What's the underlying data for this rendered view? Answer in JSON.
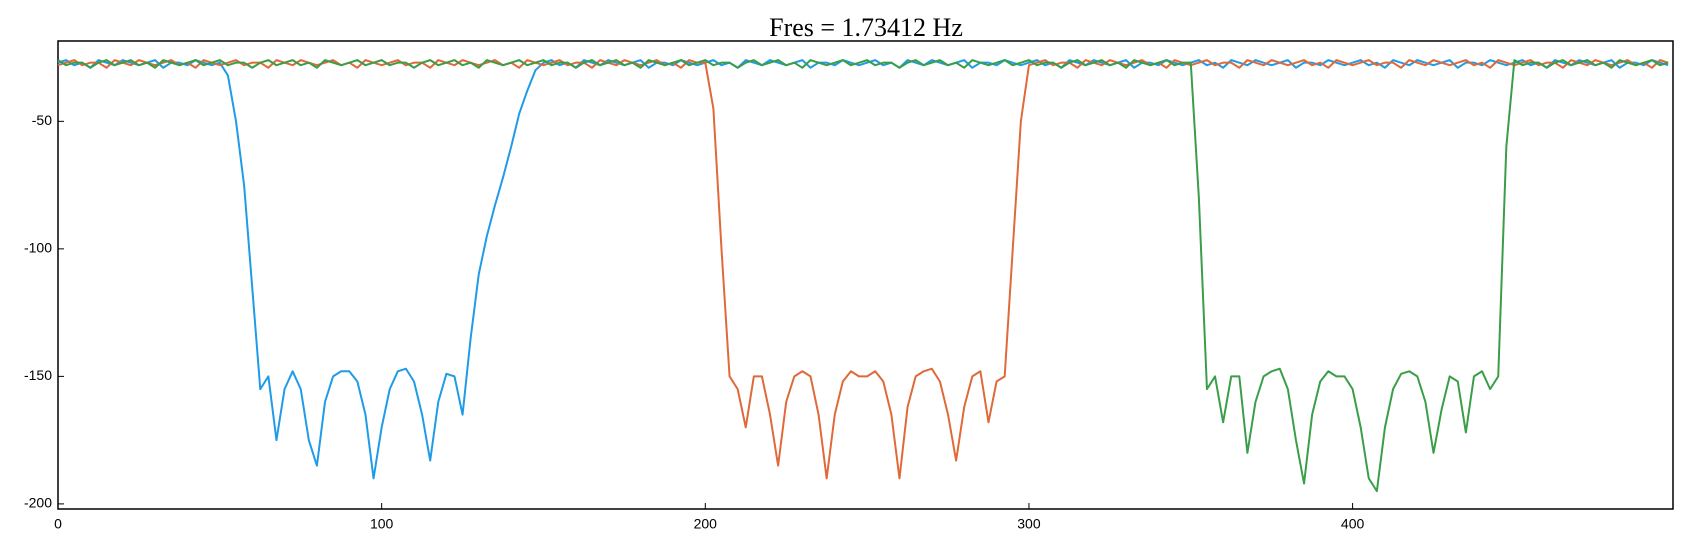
{
  "chart_data": {
    "type": "line",
    "title": "Fres = 1.73412 Hz",
    "x": [
      0,
      2.5,
      5,
      7.5,
      10,
      12.5,
      15,
      17.5,
      20,
      22.5,
      25,
      27.5,
      30,
      32.5,
      35,
      37.5,
      40,
      42.5,
      45,
      47.5,
      50,
      52.5,
      55,
      57.5,
      60,
      62.5,
      65,
      67.5,
      70,
      72.5,
      75,
      77.5,
      80,
      82.5,
      85,
      87.5,
      90,
      92.5,
      95,
      97.5,
      100,
      102.5,
      105,
      107.5,
      110,
      112.5,
      115,
      117.5,
      120,
      122.5,
      125,
      127.5,
      130,
      132.5,
      135,
      137.5,
      140,
      142.5,
      145,
      147.5,
      150,
      152.5,
      155,
      157.5,
      160,
      162.5,
      165,
      167.5,
      170,
      172.5,
      175,
      177.5,
      180,
      182.5,
      185,
      187.5,
      190,
      192.5,
      195,
      197.5,
      200,
      202.5,
      205,
      207.5,
      210,
      212.5,
      215,
      217.5,
      220,
      222.5,
      225,
      227.5,
      230,
      232.5,
      235,
      237.5,
      240,
      242.5,
      245,
      247.5,
      250,
      252.5,
      255,
      257.5,
      260,
      262.5,
      265,
      267.5,
      270,
      272.5,
      275,
      277.5,
      280,
      282.5,
      285,
      287.5,
      290,
      292.5,
      295,
      297.5,
      300,
      302.5,
      305,
      307.5,
      310,
      312.5,
      315,
      317.5,
      320,
      322.5,
      325,
      327.5,
      330,
      332.5,
      335,
      337.5,
      340,
      342.5,
      345,
      347.5,
      350,
      352.5,
      355,
      357.5,
      360,
      362.5,
      365,
      367.5,
      370,
      372.5,
      375,
      377.5,
      380,
      382.5,
      385,
      387.5,
      390,
      392.5,
      395,
      397.5,
      400,
      402.5,
      405,
      407.5,
      410,
      412.5,
      415,
      417.5,
      420,
      422.5,
      425,
      427.5,
      430,
      432.5,
      435,
      437.5,
      440,
      442.5,
      445,
      447.5,
      450,
      452.5,
      455,
      457.5,
      460,
      462.5,
      465,
      467.5,
      470,
      472.5,
      475,
      477.5,
      480,
      482.5,
      485,
      487.5,
      490,
      492.5,
      495,
      497.5
    ],
    "series": [
      {
        "color": "#1f9be8",
        "values": [
          -27,
          -26,
          -28,
          -27,
          -29,
          -26,
          -27,
          -28,
          -26,
          -27,
          -28,
          -27,
          -26,
          -29,
          -27,
          -27,
          -28,
          -26,
          -27,
          -28,
          -27,
          -32,
          -50,
          -75,
          -115,
          -155,
          -150,
          -175,
          -155,
          -148,
          -155,
          -175,
          -185,
          -160,
          -150,
          -148,
          -148,
          -152,
          -165,
          -190,
          -170,
          -155,
          -148,
          -147,
          -152,
          -165,
          -183,
          -160,
          -149,
          -150,
          -165,
          -135,
          -110,
          -95,
          -83,
          -72,
          -60,
          -47,
          -38,
          -30,
          -27,
          -26,
          -28,
          -27,
          -29,
          -26,
          -27,
          -28,
          -26,
          -27,
          -28,
          -27,
          -26,
          -29,
          -27,
          -27,
          -28,
          -26,
          -27,
          -28,
          -27,
          -26,
          -28,
          -27,
          -29,
          -26,
          -27,
          -28,
          -26,
          -27,
          -28,
          -27,
          -26,
          -29,
          -27,
          -27,
          -28,
          -26,
          -27,
          -28,
          -27,
          -26,
          -28,
          -27,
          -29,
          -26,
          -27,
          -28,
          -26,
          -27,
          -28,
          -27,
          -26,
          -29,
          -27,
          -27,
          -28,
          -26,
          -27,
          -28,
          -27,
          -26,
          -28,
          -27,
          -29,
          -26,
          -27,
          -28,
          -26,
          -27,
          -28,
          -27,
          -26,
          -29,
          -27,
          -27,
          -28,
          -26,
          -27,
          -28,
          -27,
          -26,
          -28,
          -27,
          -29,
          -26,
          -27,
          -28,
          -26,
          -27,
          -28,
          -27,
          -26,
          -29,
          -27,
          -27,
          -28,
          -26,
          -27,
          -28,
          -27,
          -26,
          -28,
          -27,
          -29,
          -26,
          -27,
          -28,
          -26,
          -27,
          -28,
          -27,
          -26,
          -29,
          -27,
          -27,
          -28,
          -26,
          -27,
          -28,
          -27,
          -26,
          -28,
          -27,
          -29,
          -26,
          -27,
          -28,
          -26,
          -27,
          -28,
          -27,
          -26,
          -29,
          -27,
          -27,
          -28,
          -26,
          -27,
          -28
        ]
      },
      {
        "color": "#e0693a",
        "values": [
          -28,
          -27,
          -26,
          -28,
          -27,
          -27,
          -29,
          -26,
          -27,
          -28,
          -26,
          -27,
          -28,
          -27,
          -26,
          -28,
          -27,
          -29,
          -26,
          -27,
          -28,
          -27,
          -26,
          -28,
          -27,
          -27,
          -29,
          -26,
          -27,
          -28,
          -26,
          -27,
          -28,
          -27,
          -26,
          -28,
          -27,
          -29,
          -26,
          -27,
          -28,
          -27,
          -26,
          -28,
          -27,
          -27,
          -29,
          -26,
          -27,
          -28,
          -26,
          -27,
          -28,
          -27,
          -26,
          -28,
          -27,
          -29,
          -26,
          -27,
          -28,
          -27,
          -26,
          -28,
          -27,
          -27,
          -29,
          -26,
          -27,
          -28,
          -26,
          -27,
          -28,
          -27,
          -26,
          -28,
          -27,
          -29,
          -26,
          -27,
          -27,
          -45,
          -100,
          -150,
          -155,
          -170,
          -150,
          -150,
          -165,
          -185,
          -160,
          -150,
          -148,
          -150,
          -165,
          -190,
          -165,
          -152,
          -148,
          -150,
          -150,
          -148,
          -152,
          -165,
          -190,
          -162,
          -150,
          -148,
          -147,
          -152,
          -165,
          -183,
          -162,
          -150,
          -148,
          -168,
          -152,
          -150,
          -100,
          -50,
          -28,
          -27,
          -26,
          -28,
          -27,
          -27,
          -29,
          -26,
          -27,
          -28,
          -26,
          -27,
          -28,
          -27,
          -26,
          -28,
          -27,
          -29,
          -26,
          -27,
          -28,
          -27,
          -26,
          -28,
          -27,
          -27,
          -29,
          -26,
          -27,
          -28,
          -26,
          -27,
          -28,
          -27,
          -26,
          -28,
          -27,
          -29,
          -26,
          -27,
          -28,
          -27,
          -26,
          -28,
          -27,
          -27,
          -29,
          -26,
          -27,
          -28,
          -26,
          -27,
          -28,
          -27,
          -26,
          -28,
          -27,
          -29,
          -26,
          -27,
          -28,
          -27,
          -26,
          -28,
          -27,
          -27,
          -29,
          -26,
          -27,
          -28,
          -26,
          -27,
          -28,
          -27,
          -26,
          -28,
          -27,
          -29,
          -26,
          -27
        ]
      },
      {
        "color": "#3a9e48",
        "values": [
          -26,
          -28,
          -27,
          -27,
          -29,
          -27,
          -26,
          -28,
          -27,
          -26,
          -28,
          -27,
          -29,
          -26,
          -27,
          -28,
          -27,
          -26,
          -28,
          -27,
          -26,
          -28,
          -27,
          -27,
          -29,
          -27,
          -26,
          -28,
          -27,
          -26,
          -28,
          -27,
          -29,
          -26,
          -27,
          -28,
          -27,
          -26,
          -28,
          -27,
          -26,
          -28,
          -27,
          -27,
          -29,
          -27,
          -26,
          -28,
          -27,
          -26,
          -28,
          -27,
          -29,
          -26,
          -27,
          -28,
          -27,
          -26,
          -28,
          -27,
          -26,
          -28,
          -27,
          -27,
          -29,
          -27,
          -26,
          -28,
          -27,
          -26,
          -28,
          -27,
          -29,
          -26,
          -27,
          -28,
          -27,
          -26,
          -28,
          -27,
          -26,
          -28,
          -27,
          -27,
          -29,
          -27,
          -26,
          -28,
          -27,
          -26,
          -28,
          -27,
          -29,
          -26,
          -27,
          -28,
          -27,
          -26,
          -28,
          -27,
          -26,
          -28,
          -27,
          -27,
          -29,
          -27,
          -26,
          -28,
          -27,
          -26,
          -28,
          -27,
          -29,
          -26,
          -27,
          -28,
          -27,
          -26,
          -28,
          -27,
          -26,
          -28,
          -27,
          -27,
          -29,
          -27,
          -26,
          -28,
          -27,
          -26,
          -28,
          -27,
          -29,
          -26,
          -27,
          -28,
          -27,
          -26,
          -28,
          -27,
          -27,
          -80,
          -155,
          -150,
          -168,
          -150,
          -150,
          -180,
          -160,
          -150,
          -148,
          -147,
          -155,
          -175,
          -192,
          -165,
          -152,
          -148,
          -150,
          -150,
          -155,
          -170,
          -190,
          -195,
          -170,
          -155,
          -149,
          -148,
          -150,
          -160,
          -180,
          -163,
          -150,
          -152,
          -172,
          -150,
          -148,
          -155,
          -150,
          -60,
          -26,
          -28,
          -27,
          -27,
          -29,
          -27,
          -26,
          -28,
          -27,
          -26,
          -28,
          -27,
          -29,
          -26,
          -27,
          -28,
          -27,
          -26,
          -28,
          -27
        ]
      }
    ],
    "xlim": [
      0,
      499
    ],
    "ylim": [
      -202,
      -18.5
    ],
    "xticks": [
      0,
      100,
      200,
      300,
      400
    ],
    "yticks": [
      -50,
      -100,
      -150,
      -200
    ]
  }
}
